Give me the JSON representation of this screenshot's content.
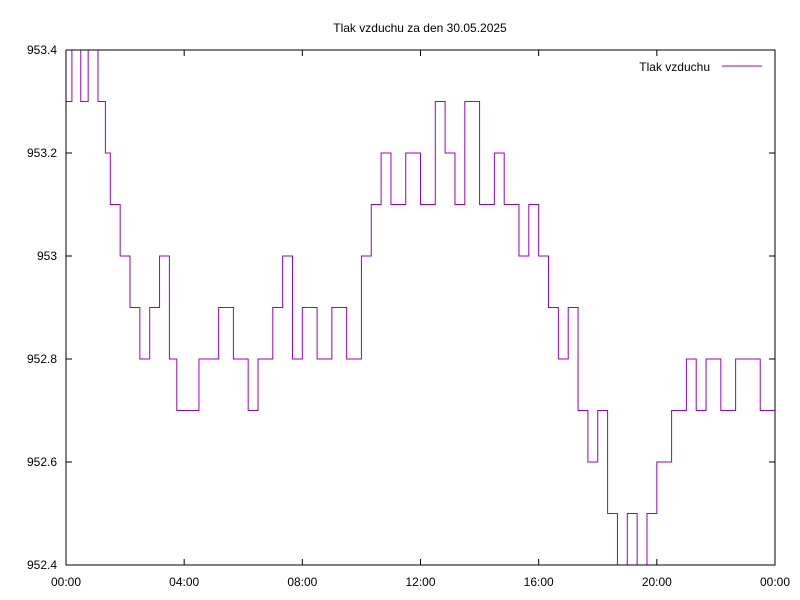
{
  "chart_data": {
    "type": "line",
    "title": "Tlak vzduchu za den 30.05.2025",
    "xlabel": "",
    "ylabel": "",
    "x_ticks": [
      "00:00",
      "04:00",
      "08:00",
      "12:00",
      "16:00",
      "20:00",
      "00:00"
    ],
    "y_ticks": [
      "953.4",
      "953.2",
      "953",
      "952.8",
      "952.6",
      "952.4"
    ],
    "xlim": [
      "00:00",
      "24:00"
    ],
    "ylim": [
      952.4,
      953.4
    ],
    "grid": false,
    "legend_position": "top-right",
    "series": [
      {
        "name": "Tlak vzduchu",
        "color": "#9400d3",
        "points": [
          [
            "00:00",
            953.3
          ],
          [
            "00:12",
            953.4
          ],
          [
            "00:30",
            953.3
          ],
          [
            "00:45",
            953.4
          ],
          [
            "01:05",
            953.3
          ],
          [
            "01:20",
            953.2
          ],
          [
            "01:30",
            953.1
          ],
          [
            "01:50",
            953.0
          ],
          [
            "02:10",
            952.9
          ],
          [
            "02:30",
            952.8
          ],
          [
            "02:50",
            952.9
          ],
          [
            "03:10",
            953.0
          ],
          [
            "03:30",
            952.8
          ],
          [
            "03:45",
            952.7
          ],
          [
            "04:30",
            952.8
          ],
          [
            "05:10",
            952.9
          ],
          [
            "05:40",
            952.8
          ],
          [
            "06:10",
            952.7
          ],
          [
            "06:30",
            952.8
          ],
          [
            "07:00",
            952.9
          ],
          [
            "07:20",
            953.0
          ],
          [
            "07:40",
            952.8
          ],
          [
            "08:00",
            952.9
          ],
          [
            "08:30",
            952.8
          ],
          [
            "09:00",
            952.9
          ],
          [
            "09:30",
            952.8
          ],
          [
            "10:00",
            953.0
          ],
          [
            "10:20",
            953.1
          ],
          [
            "10:40",
            953.2
          ],
          [
            "11:00",
            953.1
          ],
          [
            "11:30",
            953.2
          ],
          [
            "12:00",
            953.1
          ],
          [
            "12:30",
            953.3
          ],
          [
            "12:50",
            953.2
          ],
          [
            "13:10",
            953.1
          ],
          [
            "13:30",
            953.3
          ],
          [
            "14:00",
            953.1
          ],
          [
            "14:30",
            953.2
          ],
          [
            "14:50",
            953.1
          ],
          [
            "15:20",
            953.0
          ],
          [
            "15:40",
            953.1
          ],
          [
            "16:00",
            953.0
          ],
          [
            "16:20",
            952.9
          ],
          [
            "16:40",
            952.8
          ],
          [
            "17:00",
            952.9
          ],
          [
            "17:20",
            952.7
          ],
          [
            "17:40",
            952.6
          ],
          [
            "18:00",
            952.7
          ],
          [
            "18:20",
            952.5
          ],
          [
            "18:40",
            952.4
          ],
          [
            "19:00",
            952.5
          ],
          [
            "19:20",
            952.4
          ],
          [
            "19:40",
            952.5
          ],
          [
            "20:00",
            952.6
          ],
          [
            "20:30",
            952.7
          ],
          [
            "21:00",
            952.8
          ],
          [
            "21:20",
            952.7
          ],
          [
            "21:40",
            952.8
          ],
          [
            "22:10",
            952.7
          ],
          [
            "22:40",
            952.8
          ],
          [
            "23:30",
            952.7
          ],
          [
            "24:00",
            952.8
          ]
        ]
      }
    ]
  }
}
